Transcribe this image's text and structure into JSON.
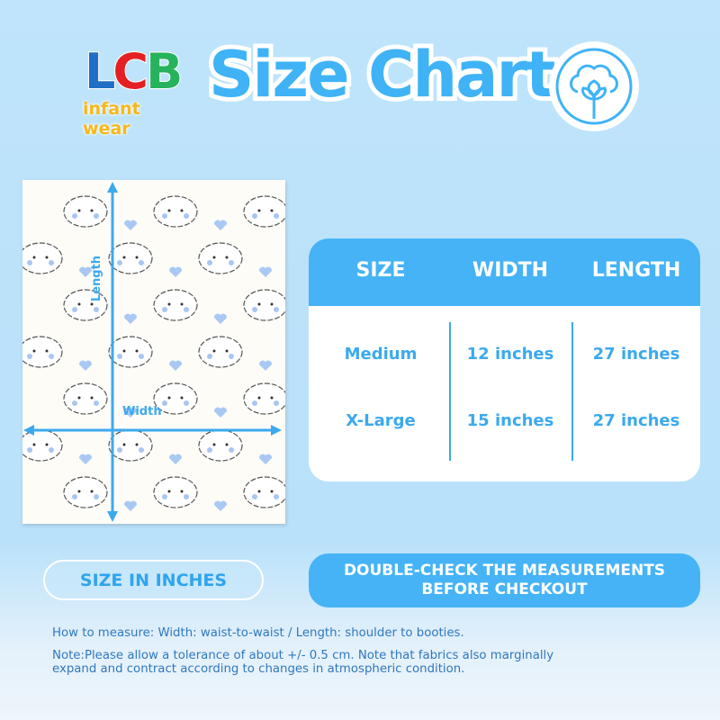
{
  "brand": {
    "logo_letters": [
      "L",
      "C",
      "B"
    ],
    "logo_colors": [
      "#1f6fc4",
      "#e42025",
      "#27b25c"
    ],
    "tagline": "infant wear"
  },
  "title": "Size Chart",
  "badge_icon": "cotton-flower-icon",
  "product": {
    "length_label": "Length",
    "width_label": "Width"
  },
  "table": {
    "headers": [
      "SIZE",
      "WIDTH",
      "LENGTH"
    ],
    "rows": [
      {
        "size": "Medium",
        "width": "12 inches",
        "length": "27 inches"
      },
      {
        "size": "X-Large",
        "width": "15 inches",
        "length": "27 inches"
      }
    ]
  },
  "units_button": "SIZE IN INCHES",
  "notice_button": [
    "DOUBLE-CHECK THE MEASUREMENTS",
    "BEFORE CHECKOUT"
  ],
  "footer": {
    "how_to": "How to measure: Width: waist-to-waist / Length: shoulder to booties.",
    "note_line1": "Note:Please allow a tolerance of about +/- 0.5 cm. Note that fabrics also marginally",
    "note_line2": "expand and contract according to changes in atmospheric condition."
  },
  "colors": {
    "accent": "#45b3f6",
    "background": "#bfe4fb",
    "text": "#2f78bd"
  }
}
